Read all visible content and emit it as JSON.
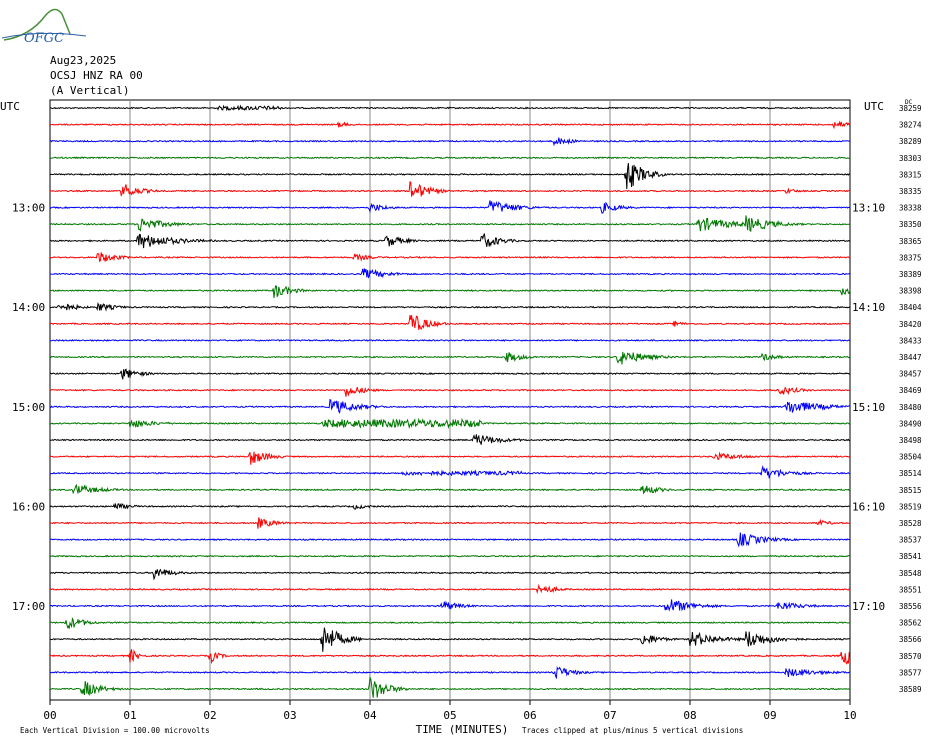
{
  "header": {
    "logo_text": "OFGC",
    "date": "Aug23,2025",
    "station": "OCSJ HNZ RA 00",
    "component": "(A Vertical)"
  },
  "footer": {
    "scale_note": "Each Vertical Division =  100.00 microvolts",
    "clip_note": "Traces clipped at plus/minus 5 vertical divisions"
  },
  "chart_data": {
    "type": "helicorder",
    "xlabel": "TIME (MINUTES)",
    "x_ticks": [
      "00",
      "01",
      "02",
      "03",
      "04",
      "05",
      "06",
      "07",
      "08",
      "09",
      "10"
    ],
    "xlim": [
      0,
      10
    ],
    "left_axis_title": "UTC",
    "right_axis_title": "UTC",
    "dc_label": "DC",
    "left_time_labels": [
      {
        "trace": 6,
        "label": "13:00"
      },
      {
        "trace": 12,
        "label": "14:00"
      },
      {
        "trace": 18,
        "label": "15:00"
      },
      {
        "trace": 24,
        "label": "16:00"
      },
      {
        "trace": 30,
        "label": "17:00"
      }
    ],
    "right_time_labels": [
      {
        "trace": 6,
        "label": "13:10"
      },
      {
        "trace": 12,
        "label": "14:10"
      },
      {
        "trace": 18,
        "label": "15:10"
      },
      {
        "trace": 24,
        "label": "16:10"
      },
      {
        "trace": 30,
        "label": "17:10"
      }
    ],
    "trace_colors": [
      "#000000",
      "#ff0000",
      "#0000ff",
      "#007700"
    ],
    "dc_offsets": [
      38259,
      38274,
      38289,
      38303,
      38315,
      38335,
      38338,
      38350,
      38365,
      38375,
      38389,
      38398,
      38404,
      38420,
      38433,
      38447,
      38457,
      38469,
      38480,
      38490,
      38498,
      38504,
      38514,
      38515,
      38519,
      38528,
      38537,
      38541,
      38548,
      38551,
      38556,
      38562,
      38566,
      38570,
      38577,
      38589
    ],
    "events": [
      {
        "trace": 0,
        "t": 2.1,
        "amp": 2,
        "dur": 0.8,
        "band": true
      },
      {
        "trace": 1,
        "t": 3.6,
        "amp": 3,
        "dur": 0.15
      },
      {
        "trace": 1,
        "t": 9.8,
        "amp": 4,
        "dur": 0.25
      },
      {
        "trace": 2,
        "t": 6.3,
        "amp": 5,
        "dur": 0.2
      },
      {
        "trace": 4,
        "t": 7.2,
        "amp": 18,
        "dur": 0.2
      },
      {
        "trace": 5,
        "t": 0.9,
        "amp": 9,
        "dur": 0.2
      },
      {
        "trace": 5,
        "t": 4.5,
        "amp": 12,
        "dur": 0.2
      },
      {
        "trace": 5,
        "t": 9.2,
        "amp": 3,
        "dur": 0.15
      },
      {
        "trace": 6,
        "t": 5.5,
        "amp": 8,
        "dur": 0.3
      },
      {
        "trace": 6,
        "t": 4.0,
        "amp": 5,
        "dur": 0.2
      },
      {
        "trace": 6,
        "t": 6.9,
        "amp": 6,
        "dur": 0.2
      },
      {
        "trace": 7,
        "t": 1.1,
        "amp": 8,
        "dur": 0.3
      },
      {
        "trace": 7,
        "t": 8.1,
        "amp": 8,
        "dur": 0.4
      },
      {
        "trace": 7,
        "t": 8.7,
        "amp": 9,
        "dur": 0.3
      },
      {
        "trace": 8,
        "t": 1.1,
        "amp": 9,
        "dur": 0.4
      },
      {
        "trace": 8,
        "t": 4.2,
        "amp": 7,
        "dur": 0.2
      },
      {
        "trace": 8,
        "t": 5.4,
        "amp": 9,
        "dur": 0.2
      },
      {
        "trace": 9,
        "t": 0.6,
        "amp": 7,
        "dur": 0.2
      },
      {
        "trace": 9,
        "t": 3.8,
        "amp": 4,
        "dur": 0.2
      },
      {
        "trace": 10,
        "t": 3.9,
        "amp": 6,
        "dur": 0.3
      },
      {
        "trace": 11,
        "t": 2.8,
        "amp": 8,
        "dur": 0.2
      },
      {
        "trace": 11,
        "t": 9.9,
        "amp": 5,
        "dur": 0.2
      },
      {
        "trace": 12,
        "t": 0.1,
        "amp": 6,
        "dur": 0.2
      },
      {
        "trace": 12,
        "t": 0.6,
        "amp": 5,
        "dur": 0.2
      },
      {
        "trace": 13,
        "t": 4.5,
        "amp": 12,
        "dur": 0.2
      },
      {
        "trace": 13,
        "t": 7.8,
        "amp": 3,
        "dur": 0.15
      },
      {
        "trace": 15,
        "t": 5.7,
        "amp": 6,
        "dur": 0.2
      },
      {
        "trace": 15,
        "t": 7.1,
        "amp": 9,
        "dur": 0.3
      },
      {
        "trace": 15,
        "t": 8.9,
        "amp": 4,
        "dur": 0.2
      },
      {
        "trace": 16,
        "t": 0.9,
        "amp": 7,
        "dur": 0.2
      },
      {
        "trace": 17,
        "t": 3.7,
        "amp": 7,
        "dur": 0.2
      },
      {
        "trace": 17,
        "t": 9.1,
        "amp": 6,
        "dur": 0.2
      },
      {
        "trace": 18,
        "t": 3.5,
        "amp": 9,
        "dur": 0.3
      },
      {
        "trace": 18,
        "t": 9.2,
        "amp": 8,
        "dur": 0.4
      },
      {
        "trace": 19,
        "t": 1.0,
        "amp": 5,
        "dur": 0.3
      },
      {
        "trace": 19,
        "t": 3.4,
        "amp": 4,
        "dur": 2.0,
        "band": true
      },
      {
        "trace": 20,
        "t": 5.3,
        "amp": 7,
        "dur": 0.3
      },
      {
        "trace": 21,
        "t": 2.5,
        "amp": 9,
        "dur": 0.2
      },
      {
        "trace": 21,
        "t": 8.3,
        "amp": 4,
        "dur": 0.4
      },
      {
        "trace": 22,
        "t": 8.9,
        "amp": 7,
        "dur": 0.3
      },
      {
        "trace": 22,
        "t": 4.4,
        "amp": 2,
        "dur": 1.5,
        "band": true
      },
      {
        "trace": 23,
        "t": 0.3,
        "amp": 6,
        "dur": 0.3
      },
      {
        "trace": 23,
        "t": 7.4,
        "amp": 6,
        "dur": 0.2
      },
      {
        "trace": 24,
        "t": 0.8,
        "amp": 4,
        "dur": 0.2
      },
      {
        "trace": 24,
        "t": 3.8,
        "amp": 3,
        "dur": 0.2
      },
      {
        "trace": 25,
        "t": 2.6,
        "amp": 6,
        "dur": 0.2
      },
      {
        "trace": 25,
        "t": 9.6,
        "amp": 3,
        "dur": 0.2
      },
      {
        "trace": 26,
        "t": 8.6,
        "amp": 8,
        "dur": 0.3
      },
      {
        "trace": 28,
        "t": 1.3,
        "amp": 7,
        "dur": 0.2
      },
      {
        "trace": 29,
        "t": 6.1,
        "amp": 6,
        "dur": 0.2
      },
      {
        "trace": 30,
        "t": 4.9,
        "amp": 6,
        "dur": 0.2
      },
      {
        "trace": 30,
        "t": 7.7,
        "amp": 9,
        "dur": 0.3
      },
      {
        "trace": 30,
        "t": 9.1,
        "amp": 5,
        "dur": 0.3
      },
      {
        "trace": 31,
        "t": 0.2,
        "amp": 8,
        "dur": 0.2
      },
      {
        "trace": 32,
        "t": 3.4,
        "amp": 18,
        "dur": 0.2
      },
      {
        "trace": 32,
        "t": 7.4,
        "amp": 7,
        "dur": 0.2
      },
      {
        "trace": 32,
        "t": 8.0,
        "amp": 9,
        "dur": 0.3
      },
      {
        "trace": 32,
        "t": 8.7,
        "amp": 10,
        "dur": 0.3
      },
      {
        "trace": 33,
        "t": 1.0,
        "amp": 8,
        "dur": 0.1
      },
      {
        "trace": 33,
        "t": 2.0,
        "amp": 8,
        "dur": 0.1
      },
      {
        "trace": 33,
        "t": 9.9,
        "amp": 10,
        "dur": 0.3
      },
      {
        "trace": 34,
        "t": 6.3,
        "amp": 8,
        "dur": 0.2
      },
      {
        "trace": 34,
        "t": 9.2,
        "amp": 5,
        "dur": 0.4
      },
      {
        "trace": 35,
        "t": 0.4,
        "amp": 10,
        "dur": 0.2
      },
      {
        "trace": 35,
        "t": 4.0,
        "amp": 14,
        "dur": 0.2
      }
    ]
  }
}
